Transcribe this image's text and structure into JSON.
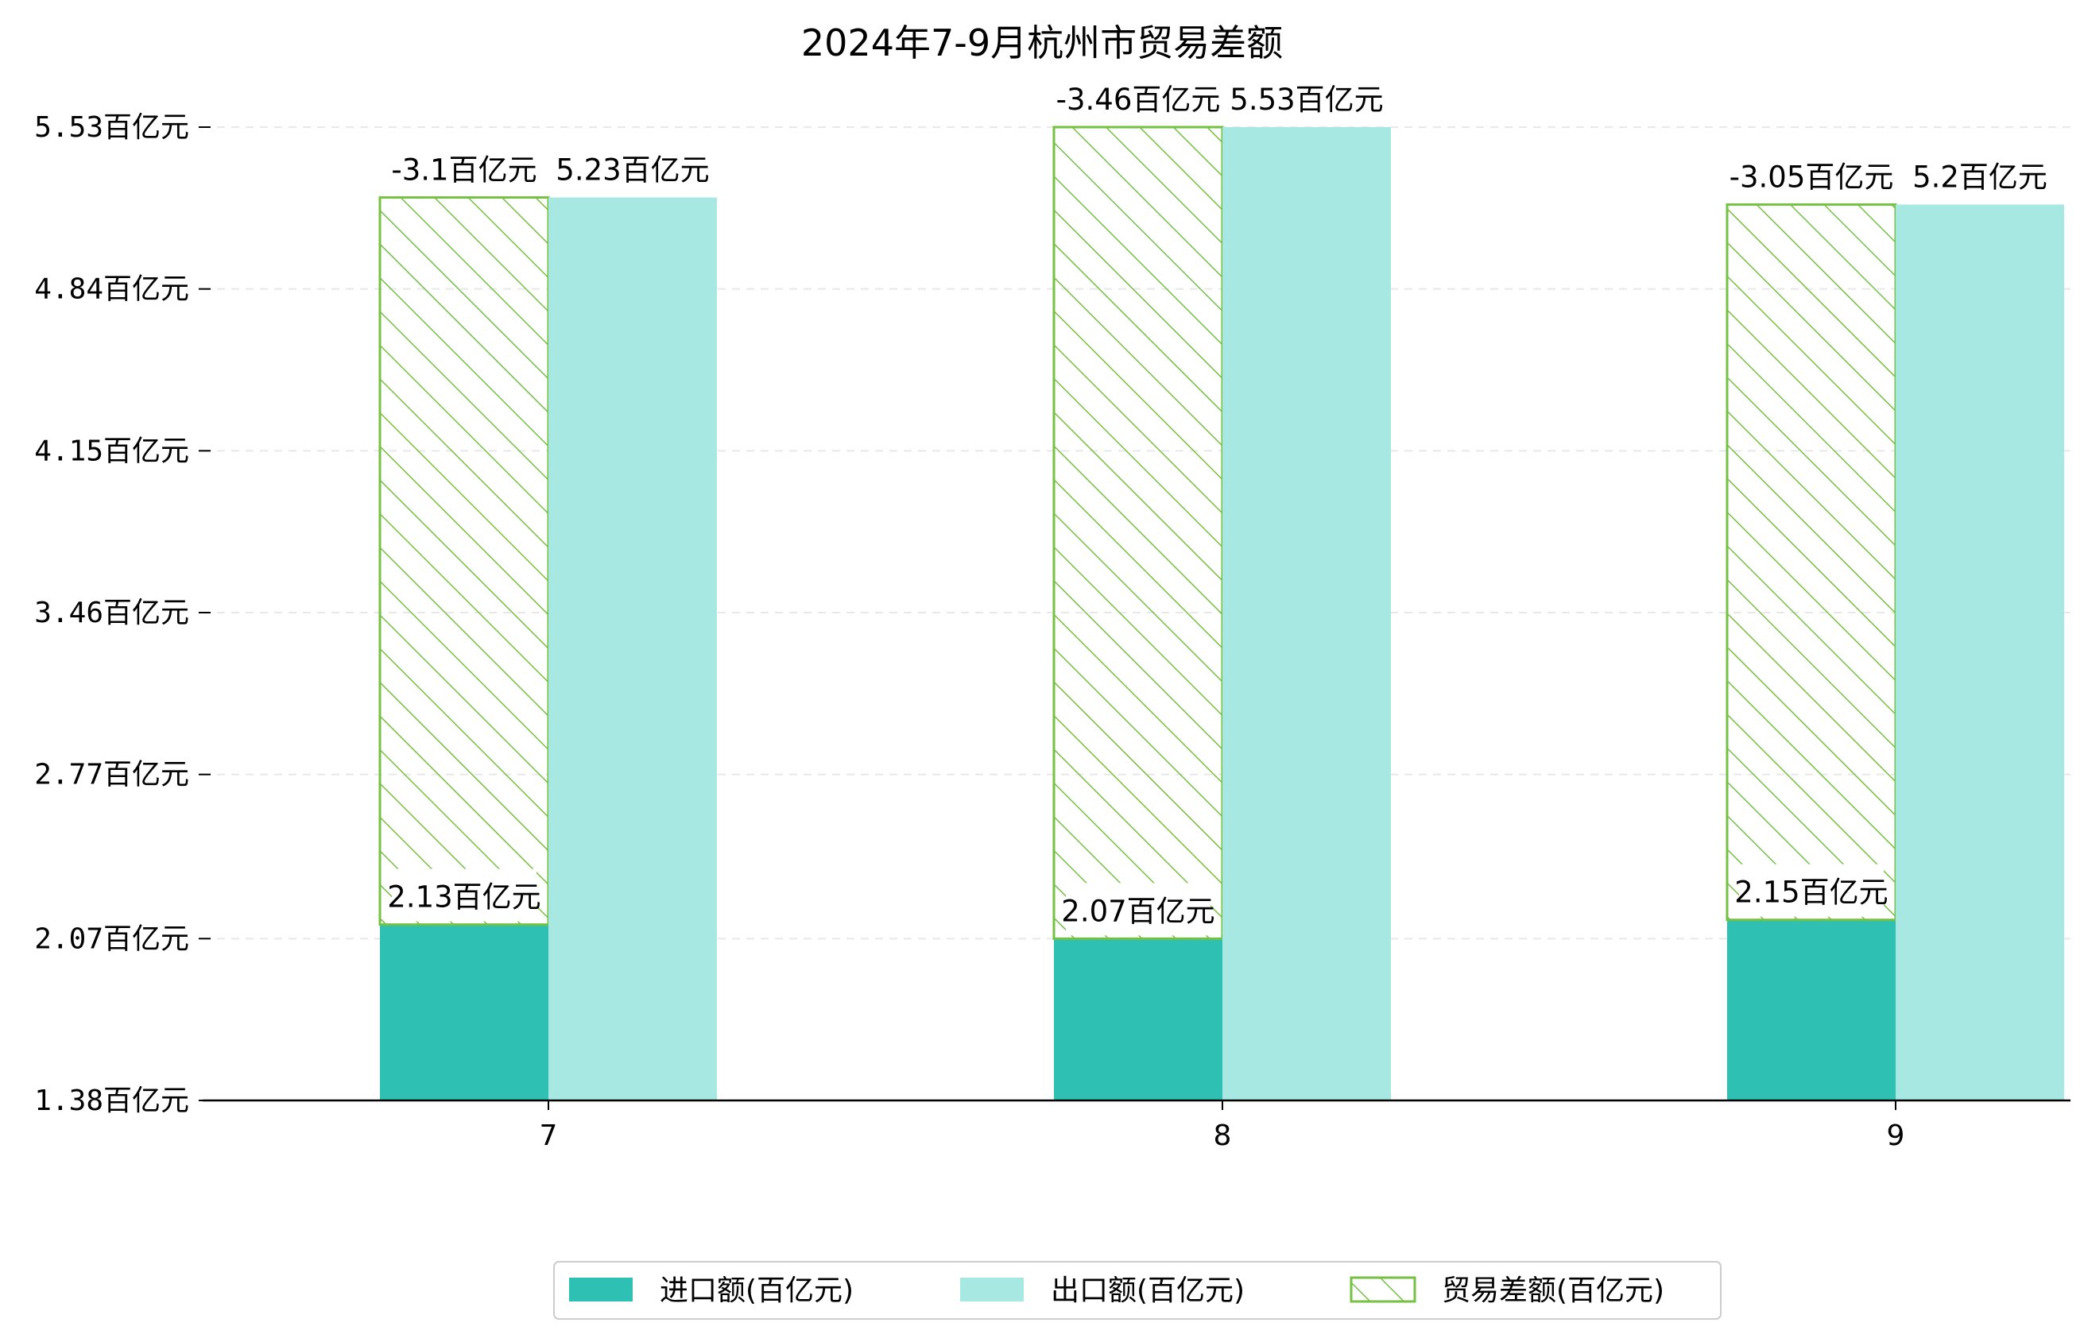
{
  "chart_data": {
    "type": "bar",
    "title": "2024年7-9月杭州市贸易差额",
    "xlabel": "",
    "ylabel": "",
    "categories": [
      "7",
      "8",
      "9"
    ],
    "ylim": [
      1.38,
      5.53
    ],
    "yticks": [
      "1.38百亿元",
      "2.07百亿元",
      "2.77百亿元",
      "3.46百亿元",
      "4.15百亿元",
      "4.84百亿元",
      "5.53百亿元"
    ],
    "ytick_values": [
      1.38,
      2.07,
      2.77,
      3.46,
      4.15,
      4.84,
      5.53
    ],
    "grid": "horizontal dashed",
    "legend_position": "bottom-center",
    "series": [
      {
        "name": "进口额(百亿元)",
        "values": [
          2.13,
          2.07,
          2.15
        ],
        "labels": [
          "2.13百亿元",
          "2.07百亿元",
          "2.15百亿元"
        ],
        "color": "#2ec1b3",
        "style": "solid"
      },
      {
        "name": "出口额(百亿元)",
        "values": [
          5.23,
          5.53,
          5.2
        ],
        "labels": [
          "5.23百亿元",
          "5.53百亿元",
          "5.2百亿元"
        ],
        "color": "#a8e8e2",
        "style": "solid"
      },
      {
        "name": "贸易差额(百亿元)",
        "values": [
          -3.1,
          -3.46,
          -3.05
        ],
        "labels": [
          "-3.1百亿元",
          "-3.46百亿元",
          "-3.05百亿元"
        ],
        "color": "#76c043",
        "style": "hatched",
        "stacked_on": "进口额(百亿元)"
      }
    ]
  }
}
